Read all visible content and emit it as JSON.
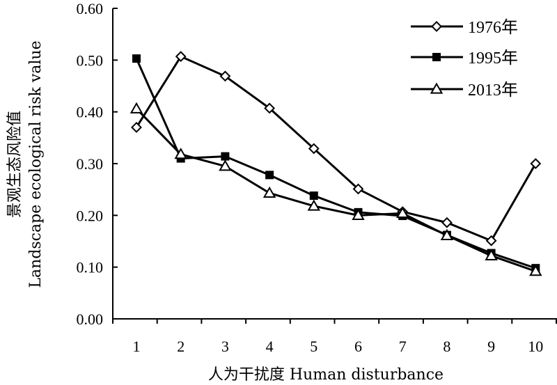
{
  "chart_data": {
    "type": "line",
    "xlabel": "人为干扰度 Human disturbance",
    "ylabel": "景观生态风险值 Landscape ecological risk value",
    "ylabel_line1": "景观生态风险值",
    "ylabel_line2": "Landscape ecological risk value",
    "x": [
      1,
      2,
      3,
      4,
      5,
      6,
      7,
      8,
      9,
      10
    ],
    "ylim": [
      0,
      0.6
    ],
    "yticks": [
      "0.00",
      "0.10",
      "0.20",
      "0.30",
      "0.40",
      "0.50",
      "0.60"
    ],
    "xticks": [
      "1",
      "2",
      "3",
      "4",
      "5",
      "6",
      "7",
      "8",
      "9",
      "10"
    ],
    "grid": false,
    "legend_position": "top-right",
    "series": [
      {
        "name": "1976年",
        "marker": "diamond-open",
        "values": [
          0.37,
          0.507,
          0.469,
          0.407,
          0.329,
          0.251,
          0.207,
          0.186,
          0.151,
          0.3
        ]
      },
      {
        "name": "1995年",
        "marker": "square-filled",
        "values": [
          0.503,
          0.31,
          0.314,
          0.278,
          0.238,
          0.206,
          0.199,
          0.162,
          0.127,
          0.098
        ]
      },
      {
        "name": "2013年",
        "marker": "triangle-open",
        "values": [
          0.406,
          0.318,
          0.295,
          0.243,
          0.218,
          0.2,
          0.204,
          0.161,
          0.122,
          0.092
        ]
      }
    ]
  }
}
